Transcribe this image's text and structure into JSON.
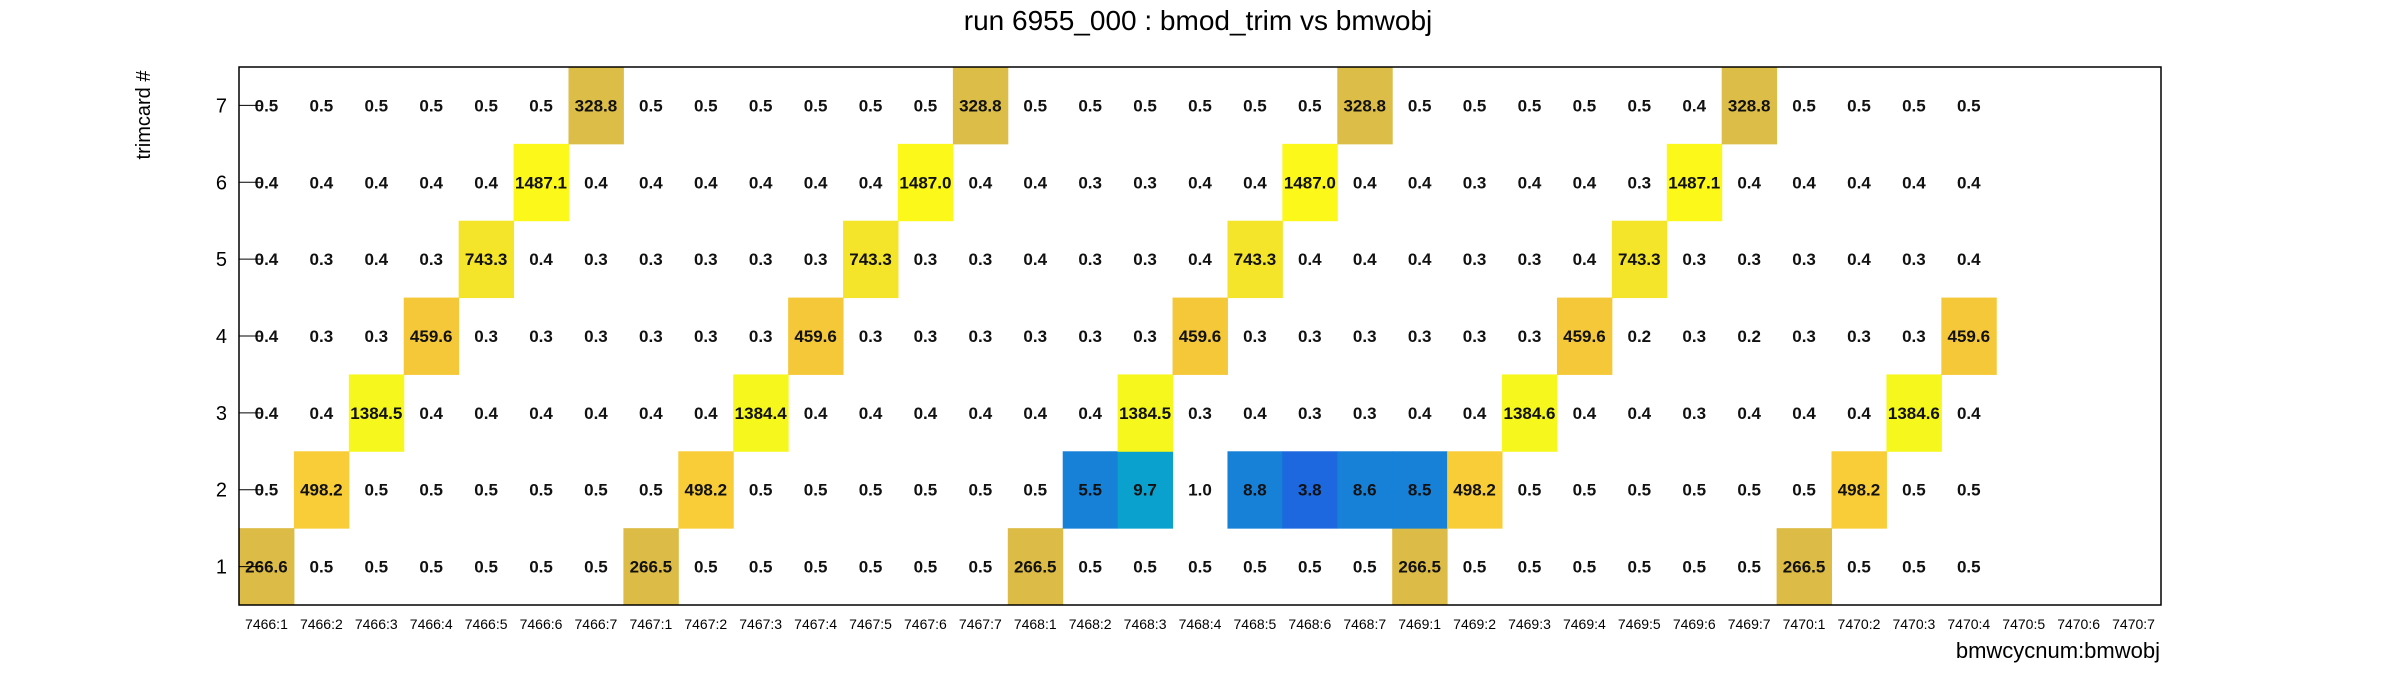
{
  "chart_data": {
    "type": "heatmap",
    "title": "run 6955_000 : bmod_trim vs bmwobj",
    "xlabel": "bmwcycnum:bmwobj",
    "ylabel": "trimcard #",
    "x_categories": [
      "7466:1",
      "7466:2",
      "7466:3",
      "7466:4",
      "7466:5",
      "7466:6",
      "7466:7",
      "7467:1",
      "7467:2",
      "7467:3",
      "7467:4",
      "7467:5",
      "7467:6",
      "7467:7",
      "7468:1",
      "7468:2",
      "7468:3",
      "7468:4",
      "7468:5",
      "7468:6",
      "7468:7",
      "7469:1",
      "7469:2",
      "7469:3",
      "7469:4",
      "7469:5",
      "7469:6",
      "7469:7",
      "7470:1",
      "7470:2",
      "7470:3",
      "7470:4",
      "7470:5",
      "7470:6",
      "7470:7"
    ],
    "y_categories": [
      "1",
      "2",
      "3",
      "4",
      "5",
      "6",
      "7"
    ],
    "rows": [
      [
        "266.6",
        "0.5",
        "0.5",
        "0.5",
        "0.5",
        "0.5",
        "0.5",
        "266.5",
        "0.5",
        "0.5",
        "0.5",
        "0.5",
        "0.5",
        "0.5",
        "266.5",
        "0.5",
        "0.5",
        "0.5",
        "0.5",
        "0.5",
        "0.5",
        "266.5",
        "0.5",
        "0.5",
        "0.5",
        "0.5",
        "0.5",
        "0.5",
        "266.5",
        "0.5",
        "0.5",
        "0.5",
        null,
        null,
        null
      ],
      [
        "0.5",
        "498.2",
        "0.5",
        "0.5",
        "0.5",
        "0.5",
        "0.5",
        "0.5",
        "498.2",
        "0.5",
        "0.5",
        "0.5",
        "0.5",
        "0.5",
        "0.5",
        "5.5",
        "9.7",
        "1.0",
        "8.8",
        "3.8",
        "8.6",
        "8.5",
        "498.2",
        "0.5",
        "0.5",
        "0.5",
        "0.5",
        "0.5",
        "0.5",
        "498.2",
        "0.5",
        "0.5",
        null,
        null,
        null
      ],
      [
        "0.4",
        "0.4",
        "1384.5",
        "0.4",
        "0.4",
        "0.4",
        "0.4",
        "0.4",
        "0.4",
        "1384.4",
        "0.4",
        "0.4",
        "0.4",
        "0.4",
        "0.4",
        "0.4",
        "1384.5",
        "0.3",
        "0.4",
        "0.3",
        "0.3",
        "0.4",
        "0.4",
        "1384.6",
        "0.4",
        "0.4",
        "0.3",
        "0.4",
        "0.4",
        "0.4",
        "1384.6",
        "0.4",
        null,
        null,
        null
      ],
      [
        "0.4",
        "0.3",
        "0.3",
        "459.6",
        "0.3",
        "0.3",
        "0.3",
        "0.3",
        "0.3",
        "0.3",
        "459.6",
        "0.3",
        "0.3",
        "0.3",
        "0.3",
        "0.3",
        "0.3",
        "459.6",
        "0.3",
        "0.3",
        "0.3",
        "0.3",
        "0.3",
        "0.3",
        "459.6",
        "0.2",
        "0.3",
        "0.2",
        "0.3",
        "0.3",
        "0.3",
        "459.6",
        null,
        null,
        null
      ],
      [
        "0.4",
        "0.3",
        "0.4",
        "0.3",
        "743.3",
        "0.4",
        "0.3",
        "0.3",
        "0.3",
        "0.3",
        "0.3",
        "743.3",
        "0.3",
        "0.3",
        "0.4",
        "0.3",
        "0.3",
        "0.4",
        "743.3",
        "0.4",
        "0.4",
        "0.4",
        "0.3",
        "0.3",
        "0.4",
        "743.3",
        "0.3",
        "0.3",
        "0.3",
        "0.4",
        "0.3",
        "0.4",
        null,
        null,
        null
      ],
      [
        "0.4",
        "0.4",
        "0.4",
        "0.4",
        "0.4",
        "1487.1",
        "0.4",
        "0.4",
        "0.4",
        "0.4",
        "0.4",
        "0.4",
        "1487.0",
        "0.4",
        "0.4",
        "0.3",
        "0.3",
        "0.4",
        "0.4",
        "1487.0",
        "0.4",
        "0.4",
        "0.3",
        "0.4",
        "0.4",
        "0.3",
        "1487.1",
        "0.4",
        "0.4",
        "0.4",
        "0.4",
        "0.4",
        null,
        null,
        null
      ],
      [
        "0.5",
        "0.5",
        "0.5",
        "0.5",
        "0.5",
        "0.5",
        "328.8",
        "0.5",
        "0.5",
        "0.5",
        "0.5",
        "0.5",
        "0.5",
        "328.8",
        "0.5",
        "0.5",
        "0.5",
        "0.5",
        "0.5",
        "0.5",
        "328.8",
        "0.5",
        "0.5",
        "0.5",
        "0.5",
        "0.5",
        "0.4",
        "328.8",
        "0.5",
        "0.5",
        "0.5",
        "0.5",
        null,
        null,
        null
      ]
    ],
    "colors": {
      "c1": "#dcbc47",
      "c2": "#f8cd37",
      "c3": "#f5f71d",
      "c4": "#f5c839",
      "c5": "#f5e52a",
      "c6": "#fbf81a",
      "c7": "#dcbd48",
      "lowA": "#0aa1cf",
      "lowB": "#1781d8",
      "lowC": "#1d67df"
    },
    "grid": false,
    "legend": "none"
  }
}
